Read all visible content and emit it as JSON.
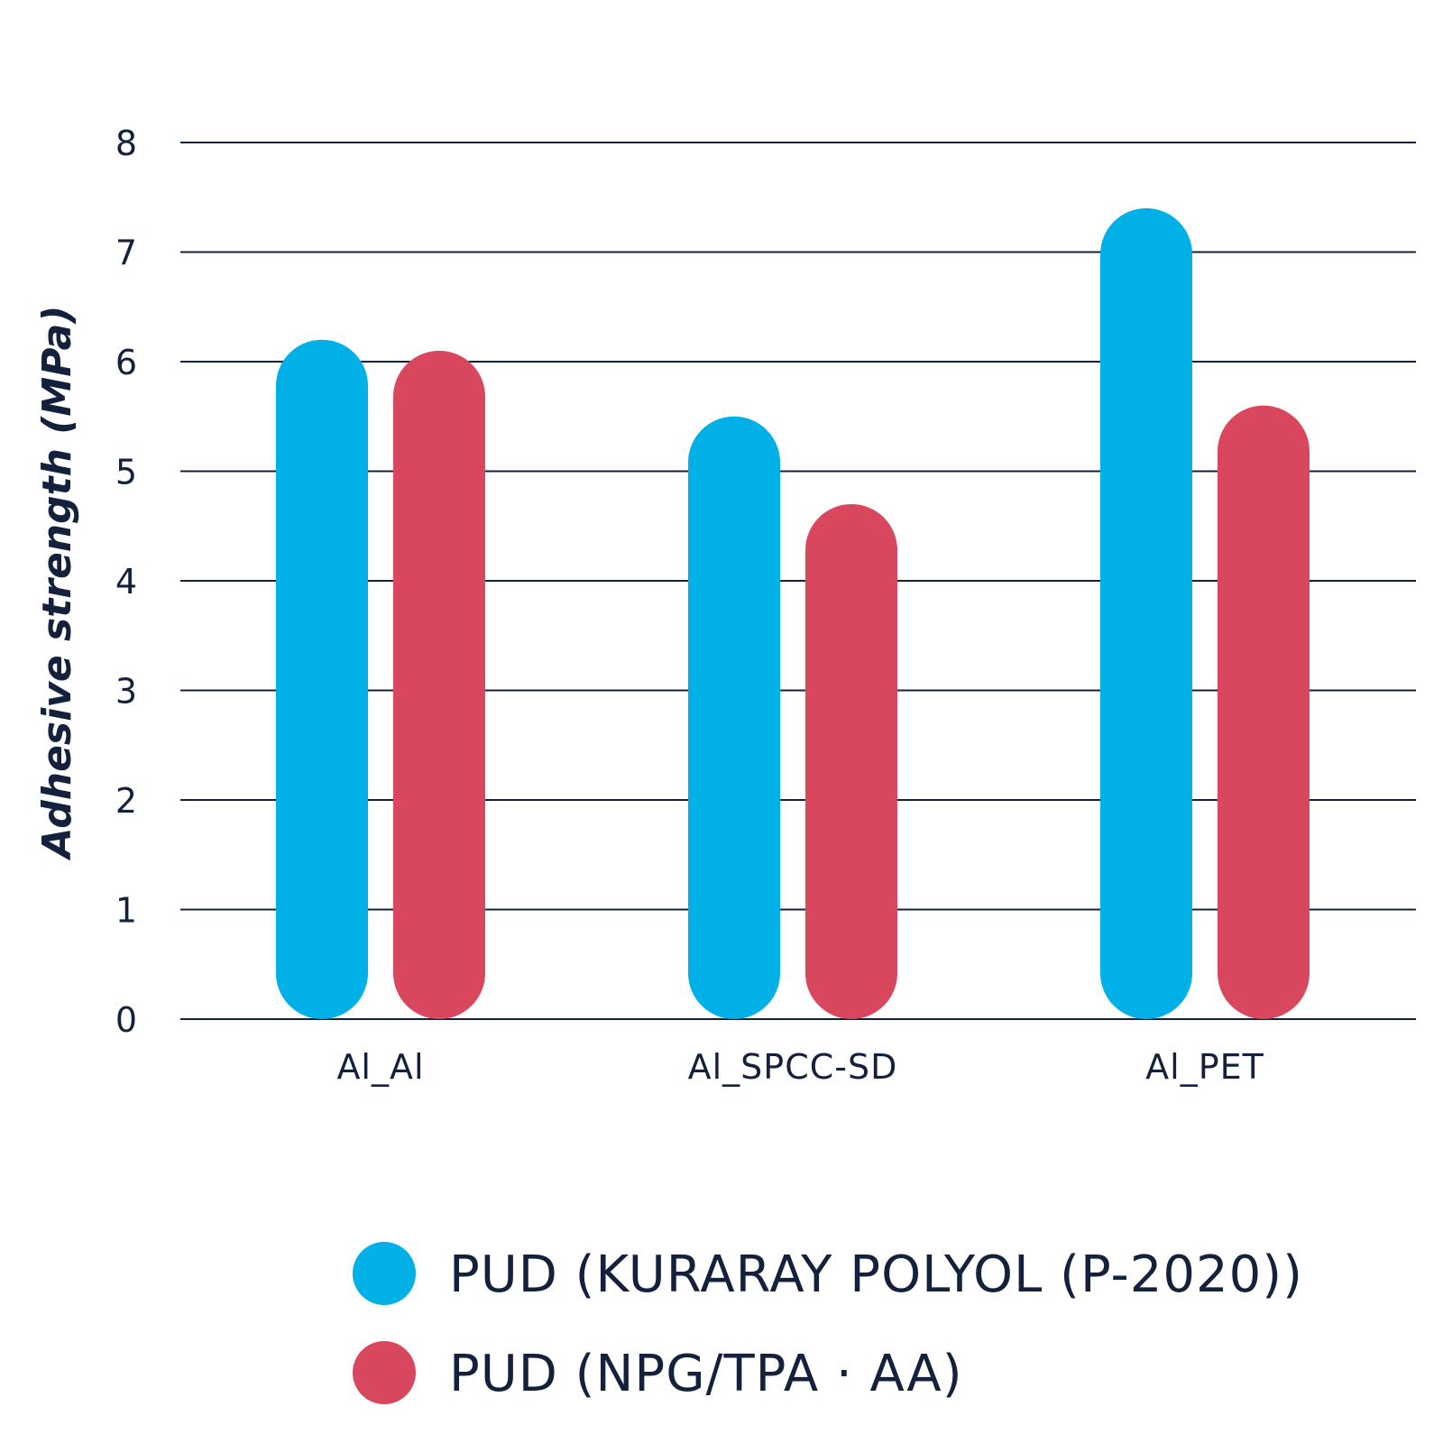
{
  "chart_data": {
    "type": "bar",
    "categories": [
      "Al_Al",
      "Al_SPCC-SD",
      "Al_PET"
    ],
    "series": [
      {
        "name": "PUD (KURARAY POLYOL (P-2020))",
        "color": "#00b0e6",
        "values": [
          6.2,
          5.5,
          7.4
        ]
      },
      {
        "name": "PUD (NPG/TPA · AA)",
        "color": "#d9475f",
        "values": [
          6.1,
          4.7,
          5.6
        ]
      }
    ],
    "ylabel": "Adhesive strength (MPa)",
    "xlabel": "",
    "title": "",
    "ylim": [
      0,
      8
    ],
    "yticks": [
      0,
      1,
      2,
      3,
      4,
      5,
      6,
      7,
      8
    ],
    "grid": true,
    "legend_position": "bottom-right",
    "bar_shape": "rounded"
  }
}
